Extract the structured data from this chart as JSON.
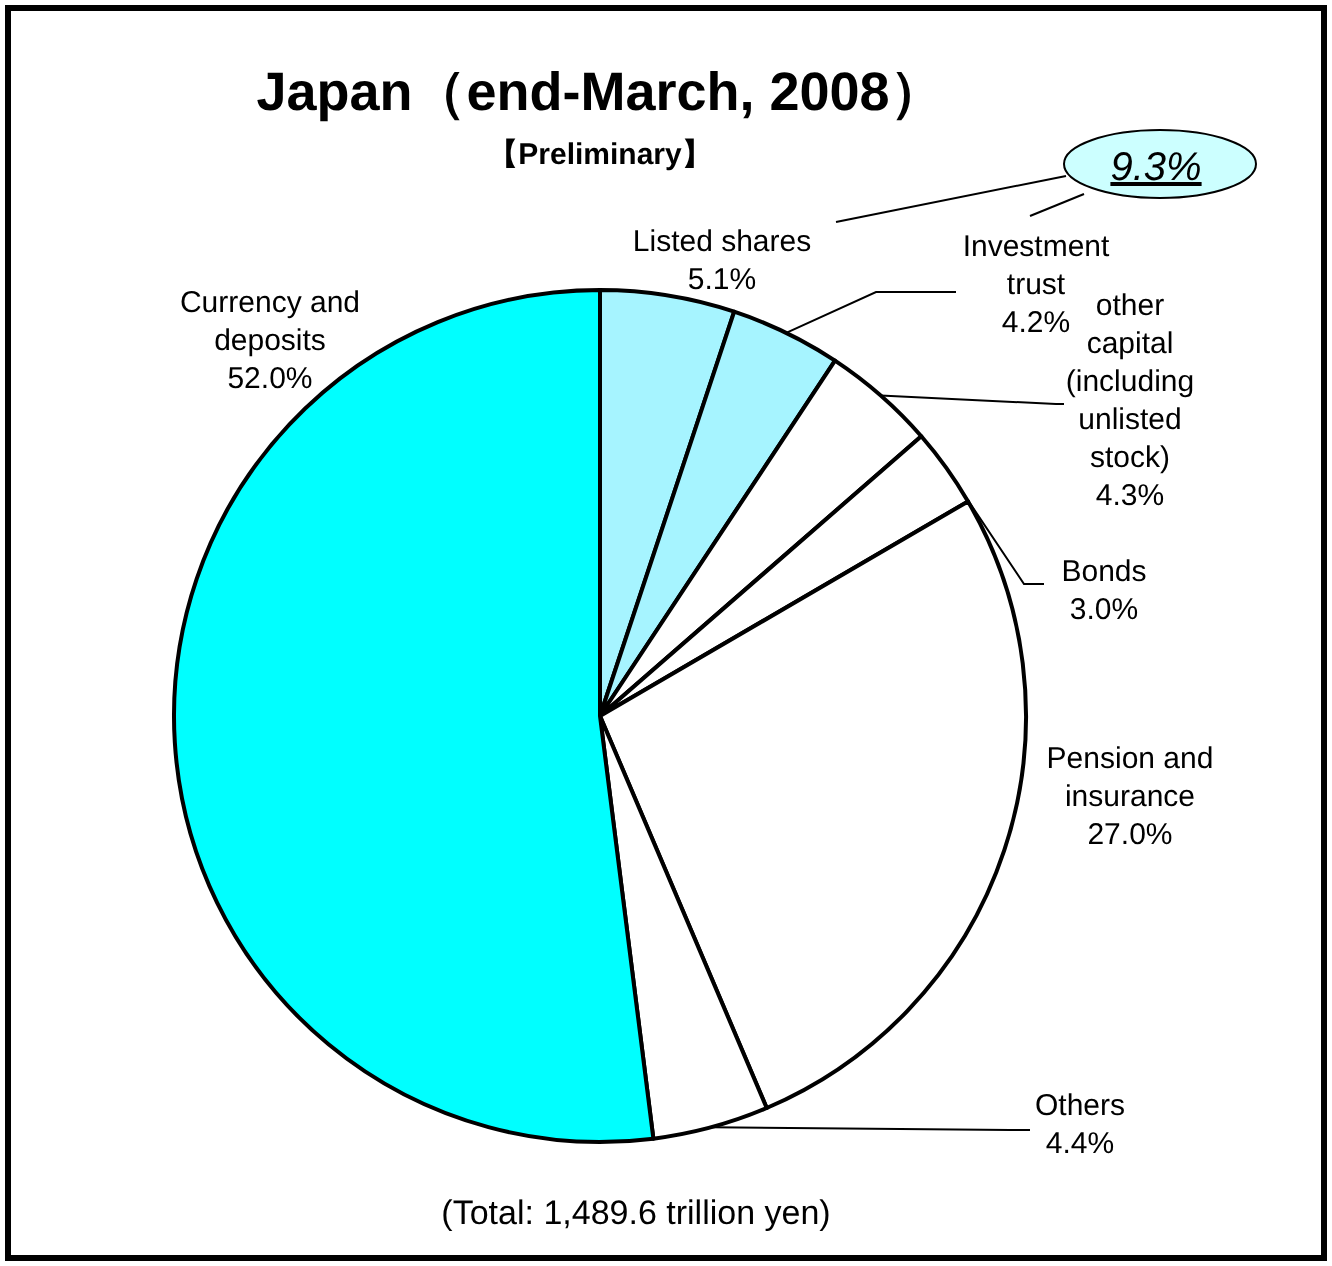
{
  "chart_data": {
    "type": "pie",
    "title": "Japan（end-March, 2008）",
    "subtitle": "【Preliminary】",
    "categories": [
      "Listed shares",
      "Investment trust",
      "other capital (including unlisted stock)",
      "Bonds",
      "Pension and insurance",
      "Others",
      "Currency and deposits"
    ],
    "values": [
      5.1,
      4.2,
      4.3,
      3.0,
      27.0,
      4.4,
      52.0
    ],
    "value_labels": [
      "5.1%",
      "4.2%",
      "4.3%",
      "3.0%",
      "27.0%",
      "4.4%",
      "52.0%"
    ],
    "colors": [
      "#a6f4ff",
      "#a6f4ff",
      "#ffffff",
      "#ffffff",
      "#ffffff",
      "#ffffff",
      "#00ffff"
    ],
    "annotations": [
      "9.3%",
      "(Total: 1,489.6 trillion yen)"
    ]
  }
}
